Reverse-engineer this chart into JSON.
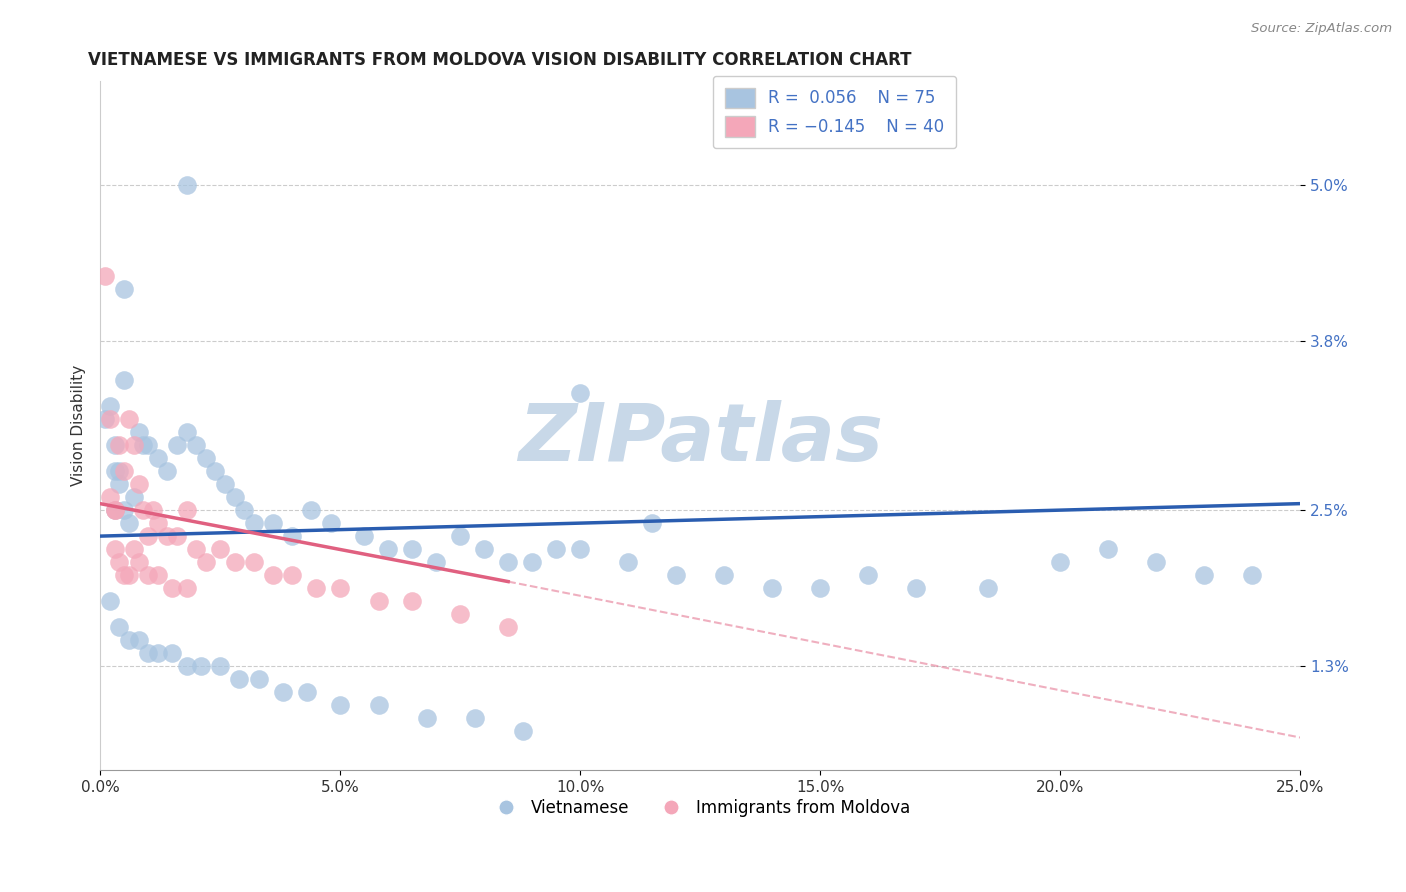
{
  "title": "VIETNAMESE VS IMMIGRANTS FROM MOLDOVA VISION DISABILITY CORRELATION CHART",
  "source": "Source: ZipAtlas.com",
  "ylabel": "Vision Disability",
  "xlim": [
    0.0,
    0.25
  ],
  "ylim": [
    0.005,
    0.058
  ],
  "yticks": [
    0.013,
    0.025,
    0.038,
    0.05
  ],
  "ytick_labels": [
    "1.3%",
    "2.5%",
    "3.8%",
    "5.0%"
  ],
  "xticks": [
    0.0,
    0.05,
    0.1,
    0.15,
    0.2,
    0.25
  ],
  "xtick_labels": [
    "0.0%",
    "5.0%",
    "10.0%",
    "15.0%",
    "20.0%",
    "25.0%"
  ],
  "color_blue": "#a8c4e0",
  "color_pink": "#f4a7b9",
  "line_blue": "#2a5db0",
  "line_pink": "#e06080",
  "tick_color": "#4472c4",
  "watermark": "ZIPatlas",
  "watermark_color": "#c8d8e8",
  "blue_scatter_x": [
    0.018,
    0.005,
    0.001,
    0.002,
    0.003,
    0.004,
    0.003,
    0.004,
    0.005,
    0.003,
    0.007,
    0.005,
    0.006,
    0.008,
    0.009,
    0.01,
    0.012,
    0.014,
    0.016,
    0.018,
    0.02,
    0.022,
    0.024,
    0.026,
    0.028,
    0.03,
    0.032,
    0.036,
    0.04,
    0.044,
    0.048,
    0.055,
    0.06,
    0.065,
    0.07,
    0.075,
    0.08,
    0.085,
    0.09,
    0.095,
    0.1,
    0.11,
    0.12,
    0.13,
    0.14,
    0.15,
    0.16,
    0.17,
    0.185,
    0.2,
    0.21,
    0.22,
    0.23,
    0.24,
    0.002,
    0.004,
    0.006,
    0.008,
    0.01,
    0.012,
    0.015,
    0.018,
    0.021,
    0.025,
    0.029,
    0.033,
    0.038,
    0.043,
    0.05,
    0.058,
    0.068,
    0.078,
    0.088,
    0.1,
    0.115
  ],
  "blue_scatter_y": [
    0.05,
    0.042,
    0.032,
    0.033,
    0.03,
    0.028,
    0.028,
    0.027,
    0.035,
    0.025,
    0.026,
    0.025,
    0.024,
    0.031,
    0.03,
    0.03,
    0.029,
    0.028,
    0.03,
    0.031,
    0.03,
    0.029,
    0.028,
    0.027,
    0.026,
    0.025,
    0.024,
    0.024,
    0.023,
    0.025,
    0.024,
    0.023,
    0.022,
    0.022,
    0.021,
    0.023,
    0.022,
    0.021,
    0.021,
    0.022,
    0.022,
    0.021,
    0.02,
    0.02,
    0.019,
    0.019,
    0.02,
    0.019,
    0.019,
    0.021,
    0.022,
    0.021,
    0.02,
    0.02,
    0.018,
    0.016,
    0.015,
    0.015,
    0.014,
    0.014,
    0.014,
    0.013,
    0.013,
    0.013,
    0.012,
    0.012,
    0.011,
    0.011,
    0.01,
    0.01,
    0.009,
    0.009,
    0.008,
    0.034,
    0.024
  ],
  "pink_scatter_x": [
    0.001,
    0.002,
    0.002,
    0.003,
    0.003,
    0.004,
    0.005,
    0.006,
    0.007,
    0.008,
    0.009,
    0.01,
    0.011,
    0.012,
    0.014,
    0.016,
    0.018,
    0.02,
    0.022,
    0.025,
    0.028,
    0.032,
    0.036,
    0.04,
    0.045,
    0.05,
    0.058,
    0.065,
    0.075,
    0.085,
    0.003,
    0.004,
    0.005,
    0.006,
    0.007,
    0.008,
    0.01,
    0.012,
    0.015,
    0.018
  ],
  "pink_scatter_y": [
    0.043,
    0.032,
    0.026,
    0.025,
    0.025,
    0.03,
    0.028,
    0.032,
    0.03,
    0.027,
    0.025,
    0.023,
    0.025,
    0.024,
    0.023,
    0.023,
    0.025,
    0.022,
    0.021,
    0.022,
    0.021,
    0.021,
    0.02,
    0.02,
    0.019,
    0.019,
    0.018,
    0.018,
    0.017,
    0.016,
    0.022,
    0.021,
    0.02,
    0.02,
    0.022,
    0.021,
    0.02,
    0.02,
    0.019,
    0.019
  ],
  "blue_line_x": [
    0.0,
    0.25
  ],
  "blue_line_y": [
    0.023,
    0.0255
  ],
  "pink_line_x": [
    0.0,
    0.085
  ],
  "pink_line_y": [
    0.0255,
    0.0195
  ],
  "dashed_line_x": [
    0.085,
    0.25
  ],
  "dashed_line_y": [
    0.0195,
    0.0075
  ]
}
